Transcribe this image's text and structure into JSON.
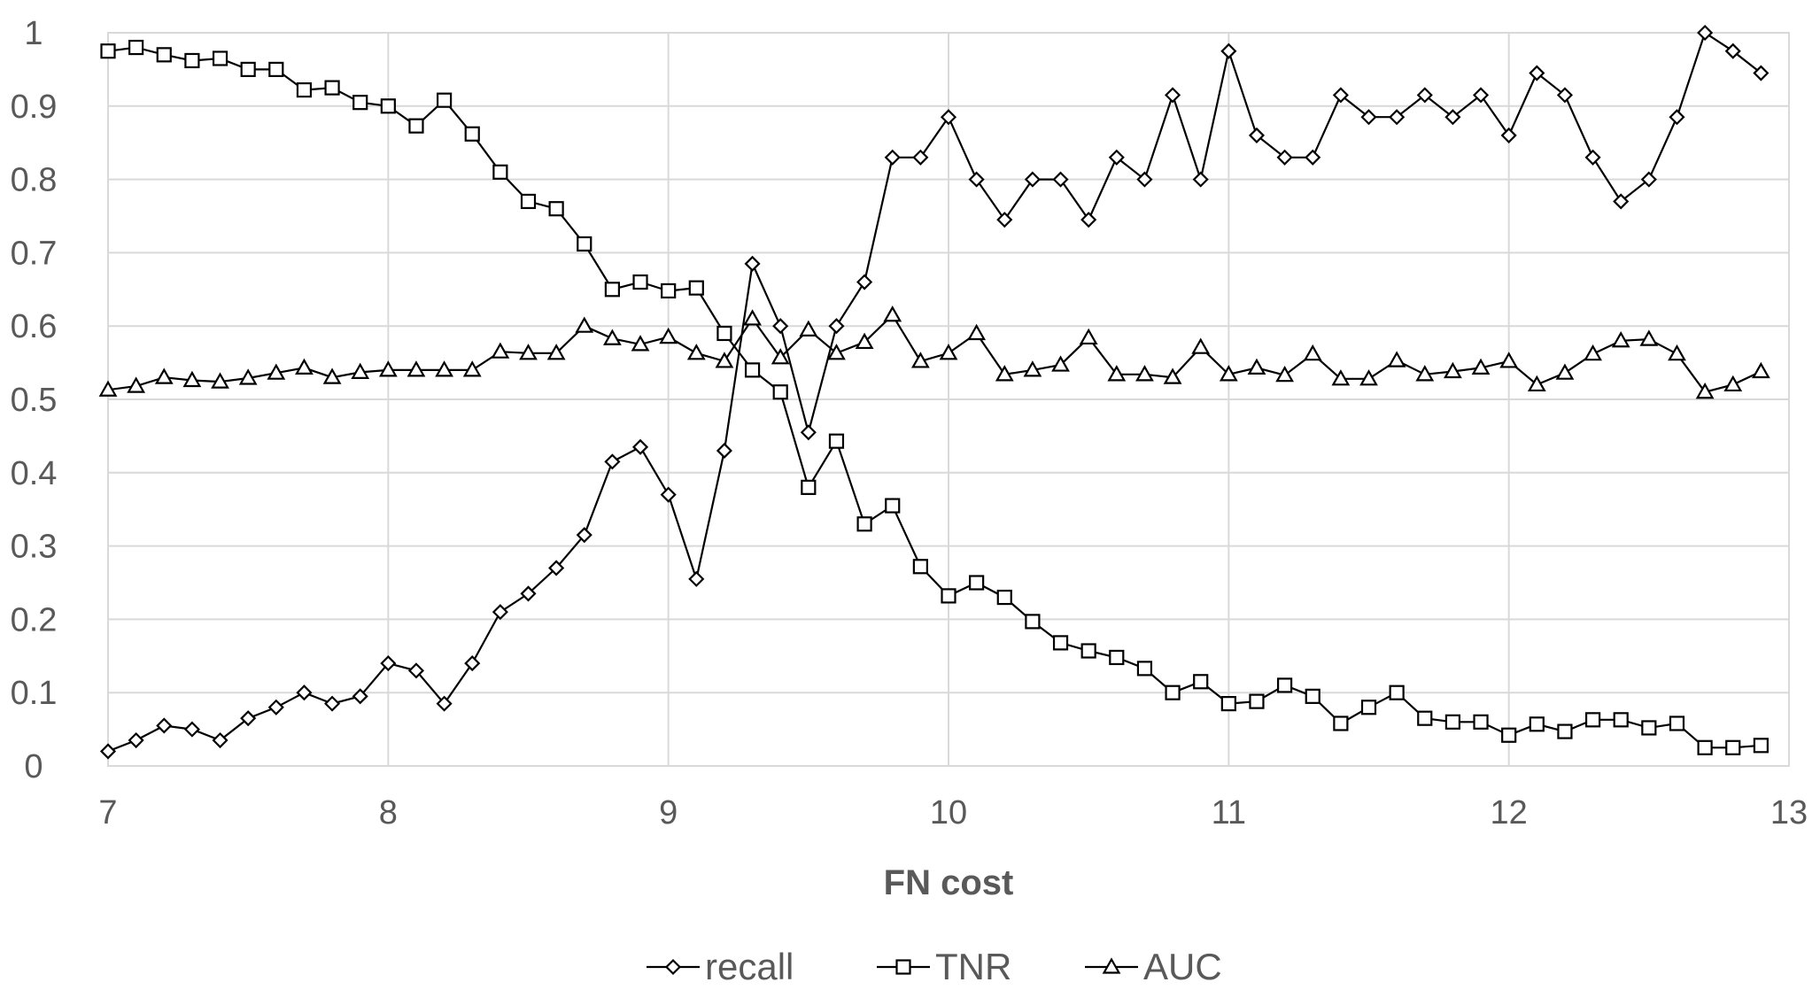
{
  "chart_data": {
    "type": "line",
    "xlabel": "FN cost",
    "ylabel": "",
    "xlim": [
      7,
      13
    ],
    "ylim": [
      0,
      1
    ],
    "xticks": [
      "7",
      "8",
      "9",
      "10",
      "11",
      "12",
      "13"
    ],
    "yticks": [
      "0",
      "0.1",
      "0.2",
      "0.3",
      "0.4",
      "0.5",
      "0.6",
      "0.7",
      "0.8",
      "0.9",
      "1"
    ],
    "grid": true,
    "legend_position": "bottom",
    "x": [
      7.0,
      7.1,
      7.2,
      7.3,
      7.4,
      7.5,
      7.6,
      7.7,
      7.8,
      7.9,
      8.0,
      8.1,
      8.2,
      8.3,
      8.4,
      8.5,
      8.6,
      8.7,
      8.8,
      8.9,
      9.0,
      9.1,
      9.2,
      9.3,
      9.4,
      9.5,
      9.6,
      9.7,
      9.8,
      9.9,
      10.0,
      10.1,
      10.2,
      10.3,
      10.4,
      10.5,
      10.6,
      10.7,
      10.8,
      10.9,
      11.0,
      11.1,
      11.2,
      11.3,
      11.4,
      11.5,
      11.6,
      11.7,
      11.8,
      11.9,
      12.0,
      12.1,
      12.2,
      12.3,
      12.4,
      12.5,
      12.6,
      12.7,
      12.8,
      12.9
    ],
    "series": [
      {
        "name": "recall",
        "marker": "diamond",
        "color": "#000000",
        "values": [
          0.02,
          0.035,
          0.055,
          0.05,
          0.035,
          0.065,
          0.08,
          0.1,
          0.085,
          0.095,
          0.14,
          0.13,
          0.085,
          0.14,
          0.21,
          0.235,
          0.27,
          0.315,
          0.415,
          0.435,
          0.37,
          0.255,
          0.43,
          0.685,
          0.6,
          0.455,
          0.6,
          0.66,
          0.83,
          0.83,
          0.885,
          0.8,
          0.745,
          0.8,
          0.8,
          0.745,
          0.83,
          0.8,
          0.915,
          0.8,
          0.975,
          0.86,
          0.83,
          0.83,
          0.915,
          0.885,
          0.885,
          0.915,
          0.885,
          0.915,
          0.86,
          0.945,
          0.915,
          0.83,
          0.77,
          0.8,
          0.885,
          1.0,
          0.975,
          0.945
        ]
      },
      {
        "name": "TNR",
        "marker": "square",
        "color": "#000000",
        "values": [
          0.975,
          0.98,
          0.97,
          0.962,
          0.965,
          0.95,
          0.95,
          0.922,
          0.925,
          0.905,
          0.9,
          0.873,
          0.908,
          0.862,
          0.81,
          0.77,
          0.76,
          0.712,
          0.65,
          0.66,
          0.648,
          0.652,
          0.59,
          0.54,
          0.51,
          0.38,
          0.443,
          0.33,
          0.355,
          0.272,
          0.232,
          0.25,
          0.23,
          0.197,
          0.168,
          0.157,
          0.148,
          0.133,
          0.1,
          0.115,
          0.085,
          0.088,
          0.11,
          0.095,
          0.058,
          0.08,
          0.1,
          0.065,
          0.06,
          0.06,
          0.042,
          0.057,
          0.047,
          0.063,
          0.063,
          0.052,
          0.058,
          0.025,
          0.025,
          0.028
        ]
      },
      {
        "name": "AUC",
        "marker": "triangle",
        "color": "#000000",
        "values": [
          0.513,
          0.518,
          0.53,
          0.526,
          0.524,
          0.529,
          0.536,
          0.543,
          0.53,
          0.537,
          0.54,
          0.54,
          0.54,
          0.54,
          0.565,
          0.563,
          0.563,
          0.6,
          0.583,
          0.575,
          0.585,
          0.563,
          0.552,
          0.61,
          0.557,
          0.595,
          0.563,
          0.578,
          0.615,
          0.552,
          0.563,
          0.59,
          0.534,
          0.54,
          0.547,
          0.584,
          0.534,
          0.534,
          0.53,
          0.571,
          0.534,
          0.543,
          0.533,
          0.562,
          0.528,
          0.528,
          0.553,
          0.534,
          0.538,
          0.543,
          0.552,
          0.52,
          0.536,
          0.562,
          0.58,
          0.582,
          0.562,
          0.51,
          0.52,
          0.538
        ]
      }
    ]
  }
}
